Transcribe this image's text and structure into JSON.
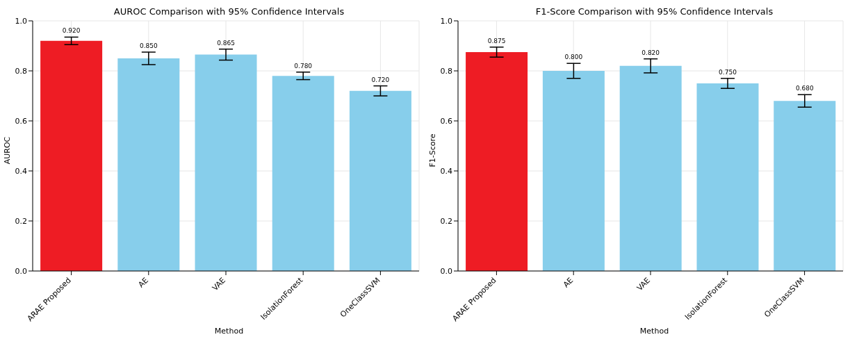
{
  "chart_data": [
    {
      "type": "bar",
      "title": "AUROC Comparison with 95% Confidence Intervals",
      "xlabel": "Method",
      "ylabel": "AUROC",
      "categories": [
        "ARAE Proposed",
        "AE",
        "VAE",
        "IsolationForest",
        "OneClassSVM"
      ],
      "values": [
        0.92,
        0.85,
        0.865,
        0.78,
        0.72
      ],
      "colors": [
        "#ee1c24",
        "#87ceeb",
        "#87ceeb",
        "#87ceeb",
        "#87ceeb"
      ],
      "errors": [
        0.015,
        0.025,
        0.022,
        0.015,
        0.02
      ],
      "value_labels": [
        "0.920",
        "0.850",
        "0.865",
        "0.780",
        "0.720"
      ],
      "ylim": [
        0,
        1
      ],
      "yticks": [
        {
          "value": 0,
          "label": "0.0"
        },
        {
          "value": 0.2,
          "label": "0.2"
        },
        {
          "value": 0.4,
          "label": "0.4"
        },
        {
          "value": 0.6,
          "label": "0.6"
        },
        {
          "value": 0.8,
          "label": "0.8"
        },
        {
          "value": 1,
          "label": "1.0"
        }
      ],
      "grid": true
    },
    {
      "type": "bar",
      "title": "F1-Score Comparison with 95% Confidence Intervals",
      "xlabel": "Method",
      "ylabel": "F1-Score",
      "categories": [
        "ARAE Proposed",
        "AE",
        "VAE",
        "IsolationForest",
        "OneClassSVM"
      ],
      "values": [
        0.875,
        0.8,
        0.82,
        0.75,
        0.68
      ],
      "colors": [
        "#ee1c24",
        "#87ceeb",
        "#87ceeb",
        "#87ceeb",
        "#87ceeb"
      ],
      "errors": [
        0.02,
        0.03,
        0.028,
        0.02,
        0.025
      ],
      "value_labels": [
        "0.875",
        "0.800",
        "0.820",
        "0.750",
        "0.680"
      ],
      "ylim": [
        0,
        1
      ],
      "yticks": [
        {
          "value": 0,
          "label": "0.0"
        },
        {
          "value": 0.2,
          "label": "0.2"
        },
        {
          "value": 0.4,
          "label": "0.4"
        },
        {
          "value": 0.6,
          "label": "0.6"
        },
        {
          "value": 0.8,
          "label": "0.8"
        },
        {
          "value": 1,
          "label": "1.0"
        }
      ],
      "grid": true
    }
  ]
}
